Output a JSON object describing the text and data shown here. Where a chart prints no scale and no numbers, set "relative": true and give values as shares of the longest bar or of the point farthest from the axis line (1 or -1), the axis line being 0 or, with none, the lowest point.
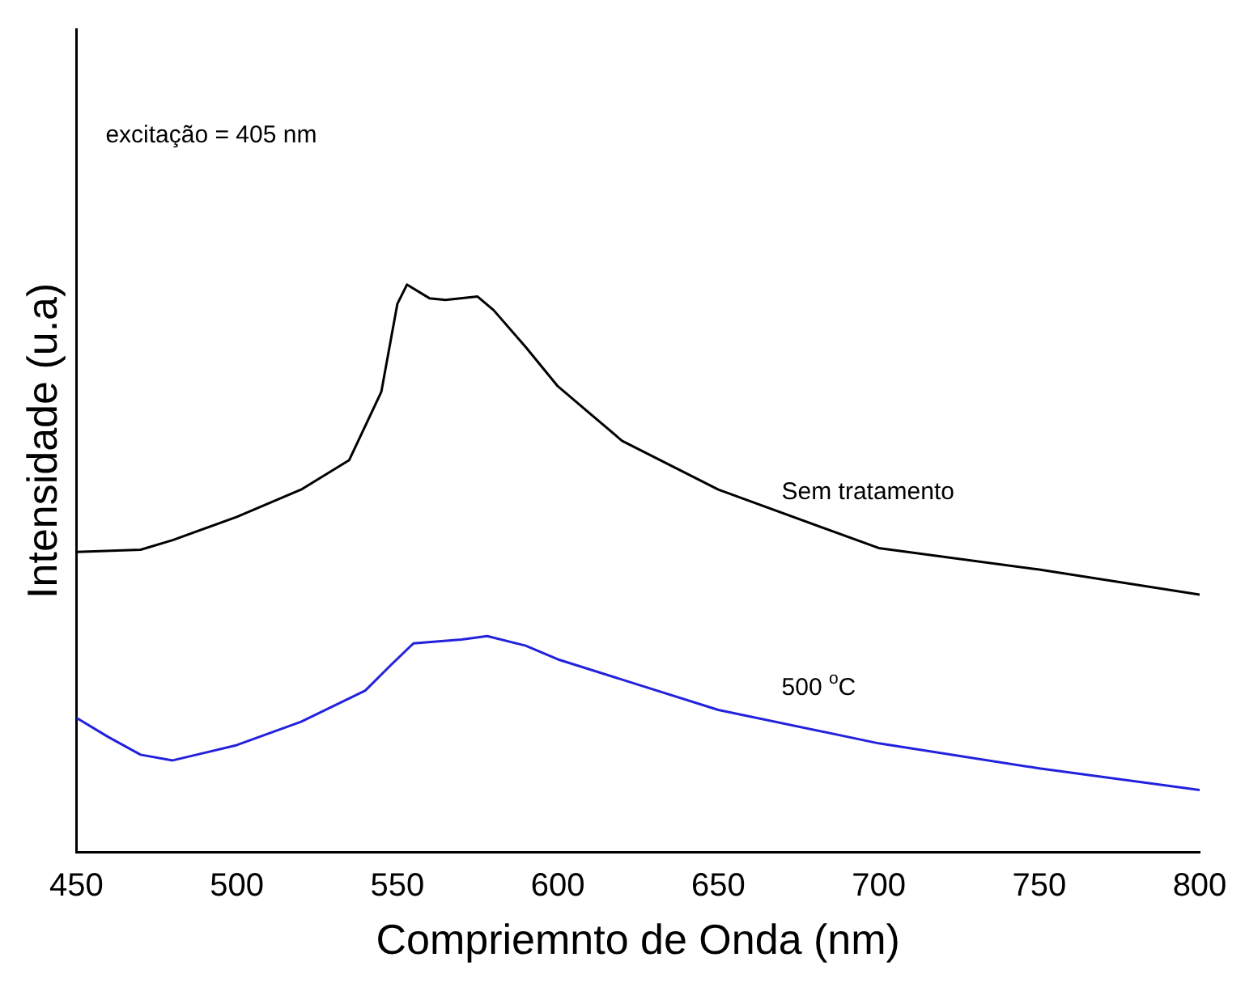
{
  "chart_data": {
    "type": "line",
    "xlabel": "Compriemnto de Onda (nm)",
    "ylabel": "Intensidade (u.a)",
    "relative": true,
    "xlim": [
      450,
      800
    ],
    "xticks": [
      450,
      500,
      550,
      600,
      650,
      700,
      750,
      800
    ],
    "grid": false,
    "legend": false,
    "marker": "none",
    "annotations": [
      "excitação = 405 nm"
    ],
    "series": [
      {
        "name": "Sem tratamento",
        "color": "#000000",
        "x": [
          450,
          470,
          480,
          500,
          520,
          535,
          545,
          550,
          553,
          560,
          565,
          575,
          580,
          590,
          600,
          620,
          650,
          700,
          750,
          800
        ],
        "values": [
          0.529,
          0.533,
          0.55,
          0.591,
          0.639,
          0.691,
          0.811,
          0.966,
          1,
          0.976,
          0.973,
          0.979,
          0.955,
          0.89,
          0.821,
          0.725,
          0.639,
          0.536,
          0.498,
          0.454
        ]
      },
      {
        "name": "500 $^{o}$C",
        "color": "#2222dd",
        "x": [
          450,
          460,
          470,
          480,
          500,
          520,
          540,
          548,
          555,
          570,
          578,
          590,
          600,
          650,
          700,
          750,
          800
        ],
        "values": [
          0.237,
          0.203,
          0.172,
          0.162,
          0.189,
          0.23,
          0.285,
          0.33,
          0.368,
          0.375,
          0.381,
          0.364,
          0.34,
          0.251,
          0.192,
          0.148,
          0.11
        ]
      }
    ]
  }
}
